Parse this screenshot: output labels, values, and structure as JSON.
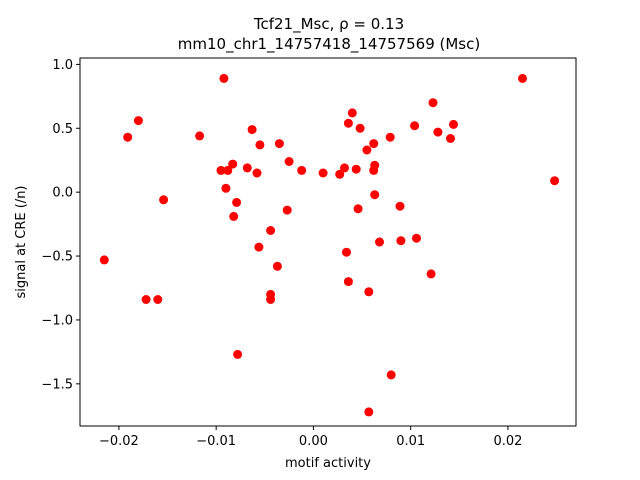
{
  "chart_data": {
    "type": "scatter",
    "title_line1": "Tcf21_Msc, ρ = 0.13",
    "title_line2": "mm10_chr1_14757418_14757569 (Msc)",
    "xlabel": "motif activity",
    "ylabel": "signal at CRE (/n)",
    "xlim": [
      -0.024,
      0.027
    ],
    "ylim": [
      -1.83,
      1.05
    ],
    "xticks": [
      -0.02,
      -0.01,
      0.0,
      0.01,
      0.02
    ],
    "xtick_labels": [
      "−0.02",
      "−0.01",
      "0.00",
      "0.01",
      "0.02"
    ],
    "yticks": [
      -1.5,
      -1.0,
      -0.5,
      0.0,
      0.5,
      1.0
    ],
    "ytick_labels": [
      "−1.5",
      "−1.0",
      "−0.5",
      "0.0",
      "0.5",
      "1.0"
    ],
    "grid": false,
    "marker_color": "#ff0000",
    "points": [
      {
        "x": -0.0215,
        "y": -0.53
      },
      {
        "x": -0.0191,
        "y": 0.43
      },
      {
        "x": -0.018,
        "y": 0.56
      },
      {
        "x": -0.0172,
        "y": -0.84
      },
      {
        "x": -0.016,
        "y": -0.84
      },
      {
        "x": -0.0154,
        "y": -0.06
      },
      {
        "x": -0.0117,
        "y": 0.44
      },
      {
        "x": -0.0095,
        "y": 0.17
      },
      {
        "x": -0.0092,
        "y": 0.89
      },
      {
        "x": -0.009,
        "y": 0.03
      },
      {
        "x": -0.0088,
        "y": 0.17
      },
      {
        "x": -0.0083,
        "y": 0.22
      },
      {
        "x": -0.0082,
        "y": -0.19
      },
      {
        "x": -0.0079,
        "y": -0.08
      },
      {
        "x": -0.0078,
        "y": -1.27
      },
      {
        "x": -0.0068,
        "y": 0.19
      },
      {
        "x": -0.0063,
        "y": 0.49
      },
      {
        "x": -0.0058,
        "y": 0.15
      },
      {
        "x": -0.0056,
        "y": -0.43
      },
      {
        "x": -0.0055,
        "y": 0.37
      },
      {
        "x": -0.0044,
        "y": -0.3
      },
      {
        "x": -0.0044,
        "y": -0.84
      },
      {
        "x": -0.0044,
        "y": -0.8
      },
      {
        "x": -0.0037,
        "y": -0.58
      },
      {
        "x": -0.0035,
        "y": 0.38
      },
      {
        "x": -0.0027,
        "y": -0.14
      },
      {
        "x": -0.0025,
        "y": 0.24
      },
      {
        "x": -0.0012,
        "y": 0.17
      },
      {
        "x": 0.001,
        "y": 0.15
      },
      {
        "x": 0.0027,
        "y": 0.14
      },
      {
        "x": 0.0032,
        "y": 0.19
      },
      {
        "x": 0.0034,
        "y": -0.47
      },
      {
        "x": 0.0036,
        "y": 0.54
      },
      {
        "x": 0.0036,
        "y": -0.7
      },
      {
        "x": 0.004,
        "y": 0.62
      },
      {
        "x": 0.0044,
        "y": 0.18
      },
      {
        "x": 0.0046,
        "y": -0.13
      },
      {
        "x": 0.0048,
        "y": 0.5
      },
      {
        "x": 0.0055,
        "y": 0.33
      },
      {
        "x": 0.0057,
        "y": -0.78
      },
      {
        "x": 0.0057,
        "y": -1.72
      },
      {
        "x": 0.0062,
        "y": 0.38
      },
      {
        "x": 0.0062,
        "y": 0.17
      },
      {
        "x": 0.0063,
        "y": 0.21
      },
      {
        "x": 0.0063,
        "y": -0.02
      },
      {
        "x": 0.0068,
        "y": -0.39
      },
      {
        "x": 0.0079,
        "y": 0.43
      },
      {
        "x": 0.008,
        "y": -1.43
      },
      {
        "x": 0.0089,
        "y": -0.11
      },
      {
        "x": 0.009,
        "y": -0.38
      },
      {
        "x": 0.0104,
        "y": 0.52
      },
      {
        "x": 0.0106,
        "y": -0.36
      },
      {
        "x": 0.0121,
        "y": -0.64
      },
      {
        "x": 0.0123,
        "y": 0.7
      },
      {
        "x": 0.0128,
        "y": 0.47
      },
      {
        "x": 0.0141,
        "y": 0.42
      },
      {
        "x": 0.0144,
        "y": 0.53
      },
      {
        "x": 0.0215,
        "y": 0.89
      },
      {
        "x": 0.0248,
        "y": 0.09
      }
    ]
  }
}
